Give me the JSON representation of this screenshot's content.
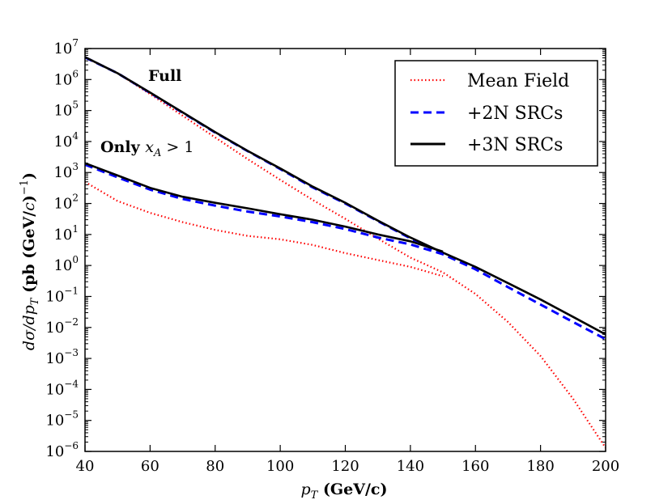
{
  "chart_data": {
    "type": "line",
    "title": "",
    "xlabel": {
      "var": "p",
      "sub": "T",
      "unit": " (GeV/c)"
    },
    "ylabel": "dσ/dp_T (pb (GeV/c)^-1)",
    "x_scale": "linear",
    "y_scale": "log",
    "xlim": [
      40,
      200
    ],
    "ylim": [
      1e-06,
      10000000.0
    ],
    "x_ticks": [
      40,
      60,
      80,
      100,
      120,
      140,
      160,
      180,
      200
    ],
    "y_ticks": [
      {
        "value": 1e-06,
        "exp": "−6"
      },
      {
        "value": 1e-05,
        "exp": "−5"
      },
      {
        "value": 0.0001,
        "exp": "−4"
      },
      {
        "value": 0.001,
        "exp": "−3"
      },
      {
        "value": 0.01,
        "exp": "−2"
      },
      {
        "value": 0.1,
        "exp": "−1"
      },
      {
        "value": 1.0,
        "exp": "0"
      },
      {
        "value": 10.0,
        "exp": "1"
      },
      {
        "value": 100.0,
        "exp": "2"
      },
      {
        "value": 1000.0,
        "exp": "3"
      },
      {
        "value": 10000.0,
        "exp": "4"
      },
      {
        "value": 100000.0,
        "exp": "5"
      },
      {
        "value": 1000000.0,
        "exp": "6"
      },
      {
        "value": 10000000.0,
        "exp": "7"
      }
    ],
    "legend_position": "top-right",
    "series": [
      {
        "name": "Mean Field",
        "group": "full",
        "style": "dotted",
        "color": "#ff0000",
        "x": [
          40,
          50,
          60,
          70,
          80,
          90,
          100,
          110,
          120,
          130,
          140,
          150,
          160,
          170,
          180,
          190,
          200
        ],
        "y": [
          5200000.0,
          1600000.0,
          340000.0,
          68000.0,
          13500.0,
          2700.0,
          580,
          130,
          32,
          7.4,
          1.8,
          0.6,
          0.12,
          0.015,
          0.0012,
          5e-05,
          1.3e-06
        ]
      },
      {
        "name": "+2N SRCs",
        "group": "full",
        "style": "dashed",
        "color": "#0000ff",
        "x": [
          40,
          50,
          60,
          70,
          80,
          90,
          100,
          110,
          120,
          130,
          140,
          150,
          160,
          170,
          180,
          190,
          200
        ],
        "y": [
          5200000.0,
          1600000.0,
          370000.0,
          85000.0,
          19500.0,
          4900.0,
          1300.0,
          330,
          100,
          27,
          7.5,
          2.3,
          0.75,
          0.2,
          0.055,
          0.015,
          0.0042
        ]
      },
      {
        "name": "+3N SRCs",
        "group": "full",
        "style": "solid",
        "color": "#000000",
        "x": [
          40,
          50,
          60,
          70,
          80,
          90,
          100,
          110,
          120,
          130,
          140,
          150,
          160,
          170,
          180,
          190,
          200
        ],
        "y": [
          5300000.0,
          1600000.0,
          380000.0,
          87000.0,
          20000.0,
          5000.0,
          1350.0,
          350,
          105,
          28,
          8,
          2.6,
          0.9,
          0.27,
          0.08,
          0.022,
          0.006
        ]
      },
      {
        "name": "Mean Field",
        "group": "xA>1",
        "style": "dotted",
        "color": "#ff0000",
        "x": [
          40,
          50,
          60,
          70,
          80,
          90,
          100,
          110,
          120,
          130,
          140,
          150
        ],
        "y": [
          500,
          120,
          50,
          25,
          14,
          9,
          7,
          4.6,
          2.5,
          1.5,
          0.9,
          0.45
        ]
      },
      {
        "name": "+2N SRCs",
        "group": "xA>1",
        "style": "dashed",
        "color": "#0000ff",
        "x": [
          40,
          50,
          60,
          70,
          80,
          90,
          100,
          110,
          120,
          130,
          140,
          150
        ],
        "y": [
          1800.0,
          700,
          280,
          140,
          85,
          55,
          38,
          25,
          15,
          8,
          4.8,
          2.3
        ]
      },
      {
        "name": "+3N SRCs",
        "group": "xA>1",
        "style": "solid",
        "color": "#000000",
        "x": [
          40,
          50,
          60,
          70,
          80,
          90,
          100,
          110,
          120,
          130,
          140,
          150
        ],
        "y": [
          2000.0,
          800,
          320,
          165,
          105,
          70,
          45,
          30,
          18,
          10,
          6,
          2.8
        ]
      }
    ],
    "legend": [
      {
        "label": "Mean Field",
        "style": "dotted",
        "color": "#ff0000"
      },
      {
        "label": "+2N SRCs",
        "style": "dashed",
        "color": "#0000ff"
      },
      {
        "label": "+3N SRCs",
        "style": "solid",
        "color": "#000000"
      }
    ],
    "annotations": {
      "full": "Full",
      "partial_prefix": "Only ",
      "partial_var": "x",
      "partial_sub": "A",
      "partial_cond": " > 1"
    }
  }
}
